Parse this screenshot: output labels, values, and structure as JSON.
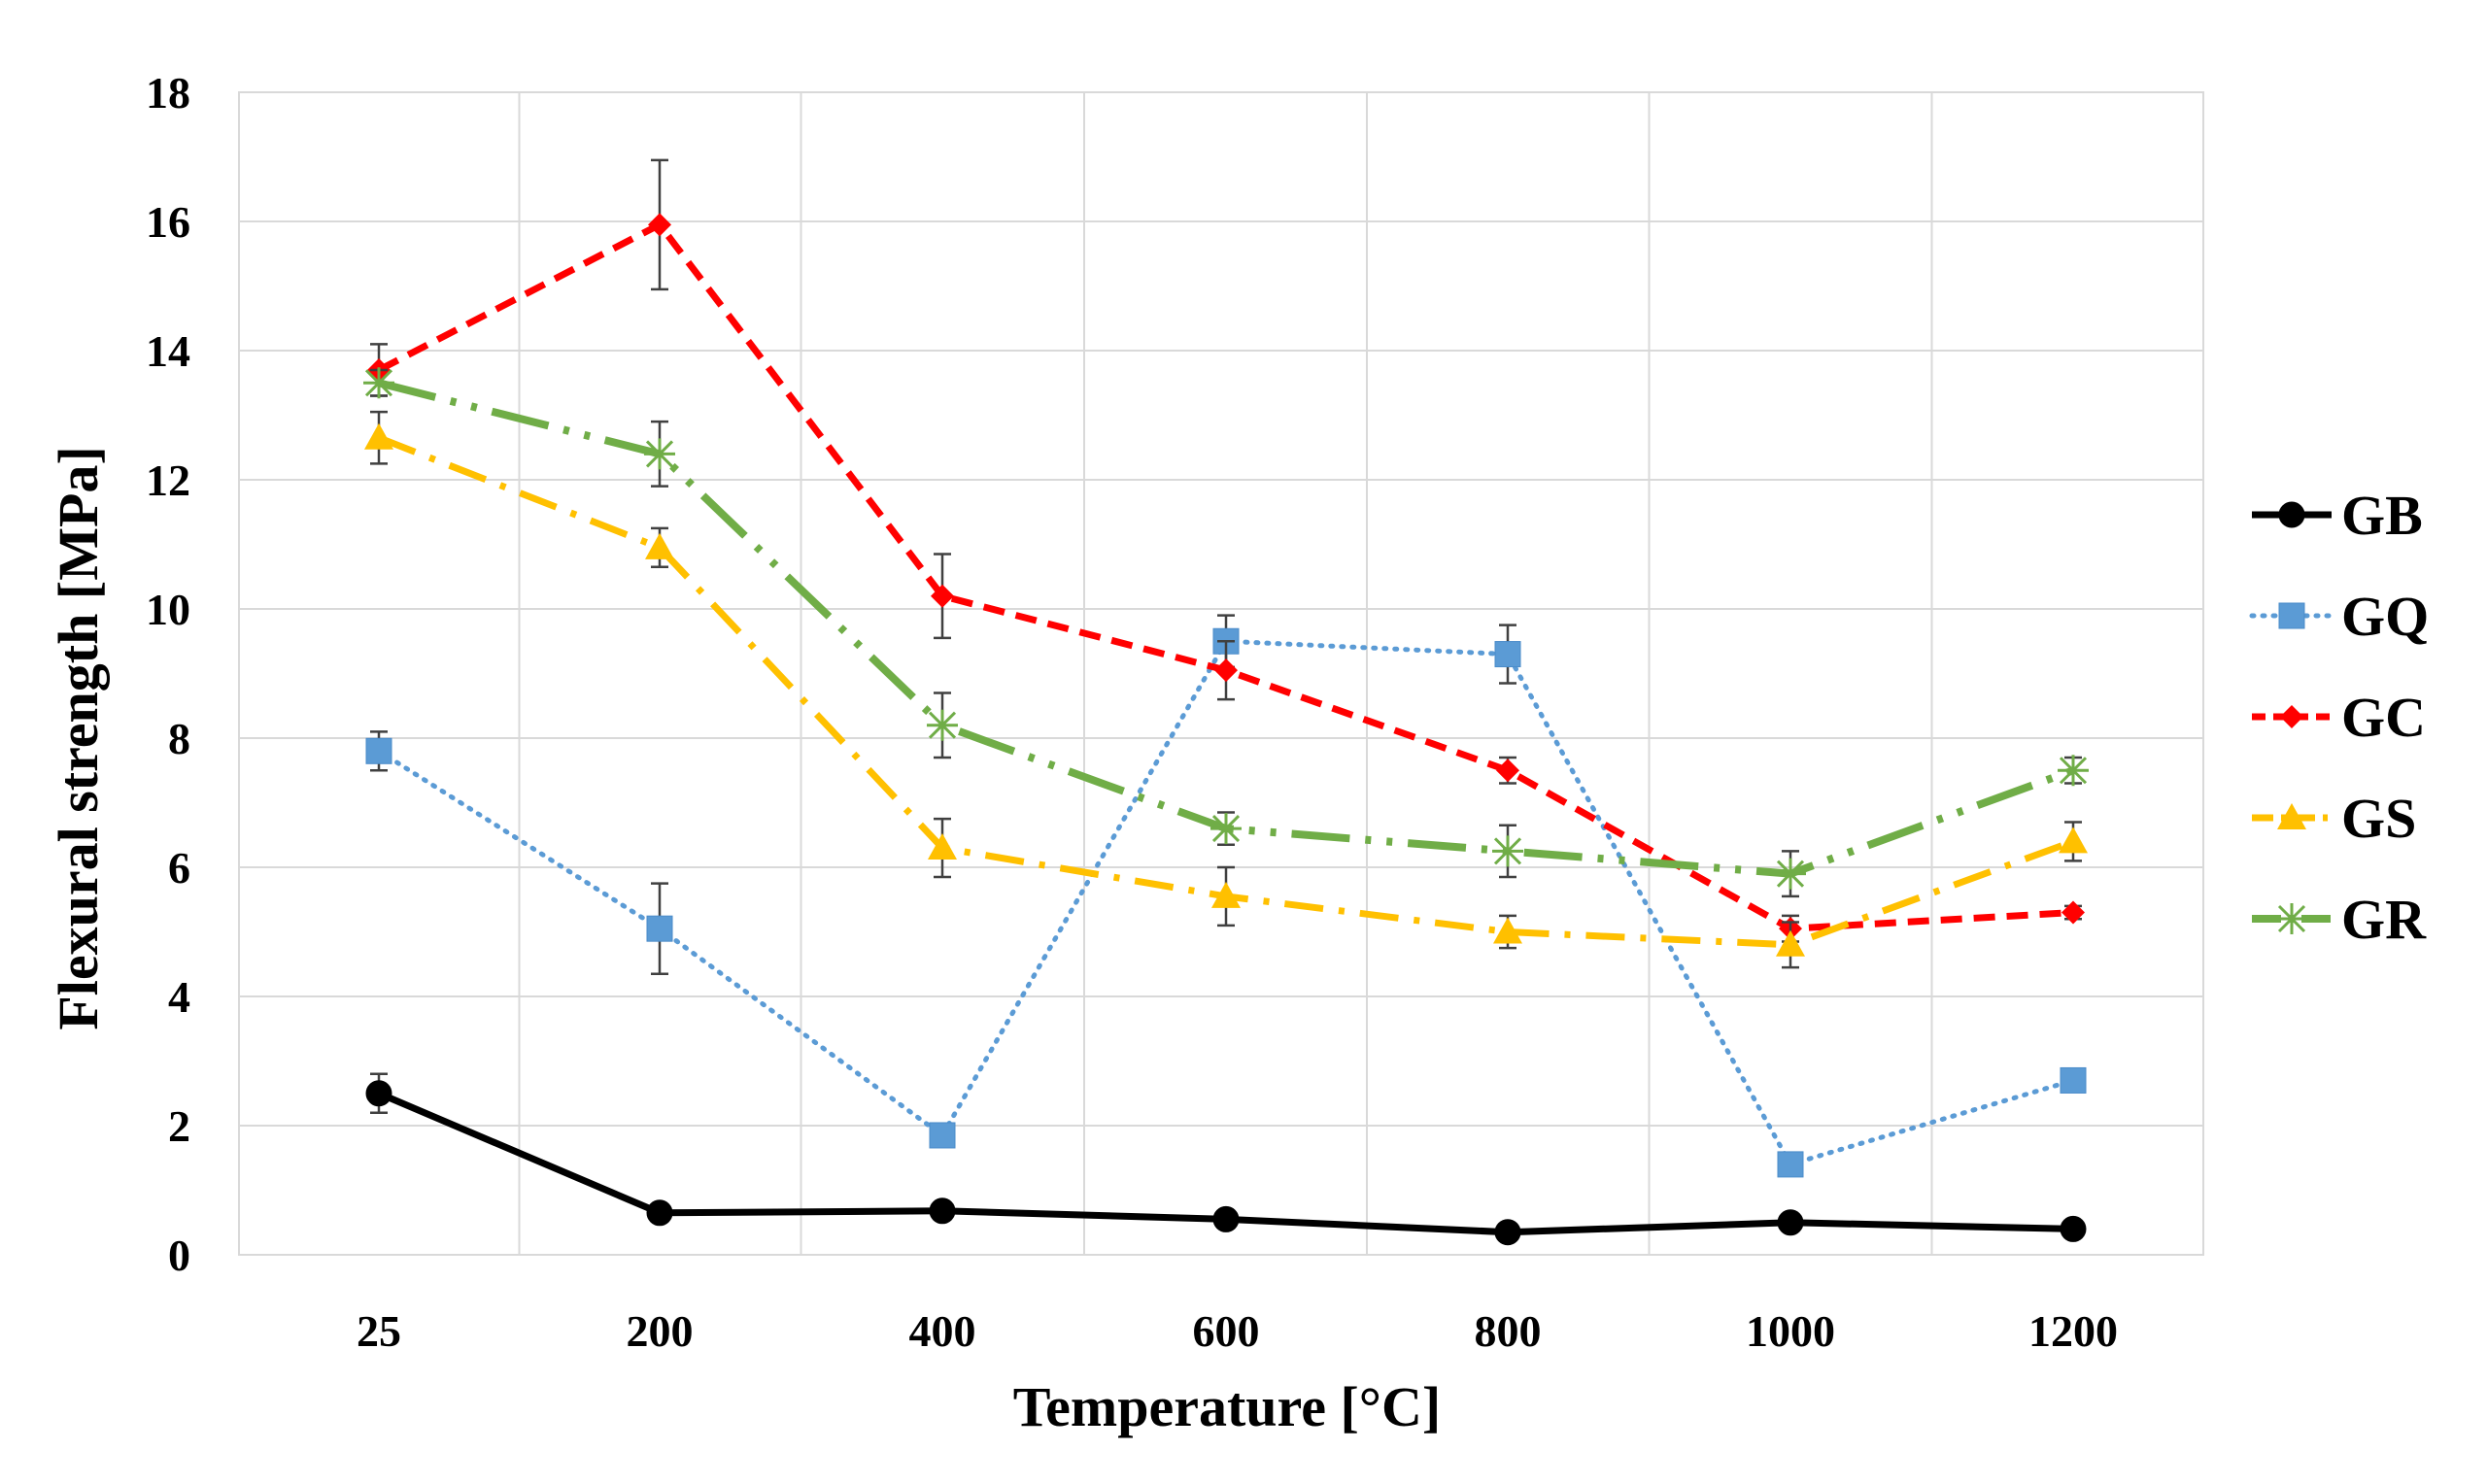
{
  "chart_data": {
    "type": "line",
    "title": "",
    "xlabel": "Temperature [°C]",
    "ylabel": "Flexural strength [MPa]",
    "categories": [
      "25",
      "200",
      "400",
      "600",
      "800",
      "1000",
      "1200"
    ],
    "ylim": [
      0,
      18
    ],
    "yticks": [
      0,
      2,
      4,
      6,
      8,
      10,
      12,
      14,
      16,
      18
    ],
    "grid": true,
    "legend_position": "right",
    "series": [
      {
        "name": "GB",
        "color": "#000000",
        "dash": "solid",
        "marker": "circle",
        "values": [
          2.5,
          0.65,
          0.68,
          0.55,
          0.35,
          0.5,
          0.4
        ],
        "errors": [
          0.3,
          0.1,
          0.1,
          0.1,
          0.1,
          0.1,
          0.1
        ]
      },
      {
        "name": "GQ",
        "color": "#5b9bd5",
        "dash": "dot",
        "marker": "square",
        "values": [
          7.8,
          5.05,
          1.85,
          9.5,
          9.3,
          1.4,
          2.7
        ],
        "errors": [
          0.3,
          0.7,
          0.1,
          0.4,
          0.45,
          0.1,
          0.1
        ]
      },
      {
        "name": "GC",
        "color": "#ff0000",
        "dash": "dash",
        "marker": "diamond",
        "values": [
          13.7,
          15.95,
          10.2,
          9.05,
          7.5,
          5.05,
          5.3
        ],
        "errors": [
          0.4,
          1.0,
          0.65,
          0.45,
          0.2,
          0.2,
          0.1
        ]
      },
      {
        "name": "GS",
        "color": "#ffc000",
        "dash": "dashdot",
        "marker": "triangle",
        "values": [
          12.65,
          10.95,
          6.3,
          5.55,
          5.0,
          4.8,
          6.4
        ],
        "errors": [
          0.4,
          0.3,
          0.45,
          0.45,
          0.25,
          0.35,
          0.3
        ]
      },
      {
        "name": "GR",
        "color": "#70ad47",
        "dash": "longdashdotdot",
        "marker": "star",
        "values": [
          13.5,
          12.4,
          8.2,
          6.6,
          6.25,
          5.9,
          7.5
        ],
        "errors": [
          0.2,
          0.5,
          0.5,
          0.25,
          0.4,
          0.35,
          0.2
        ]
      }
    ]
  }
}
